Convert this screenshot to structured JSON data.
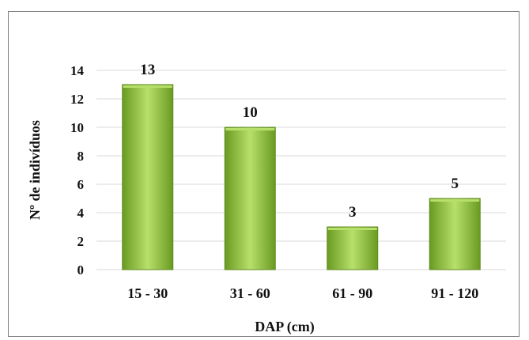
{
  "chart_data": {
    "type": "bar",
    "categories": [
      "15 - 30",
      "31 - 60",
      "61 - 90",
      "91 - 120"
    ],
    "values": [
      13,
      10,
      3,
      5
    ],
    "data_labels": [
      "13",
      "10",
      "3",
      "5"
    ],
    "title": "",
    "xlabel": "DAP (cm)",
    "ylabel": "Nº de indivíduos",
    "ylim": [
      0,
      14
    ],
    "yticks": [
      "0",
      "2",
      "4",
      "6",
      "8",
      "10",
      "12",
      "14"
    ],
    "grid": true,
    "legend": "none",
    "bar_color_top": "#b6e06a",
    "bar_color_mid": "#8cc63f",
    "bar_color_bottom": "#6a9a22",
    "bar_border_color": "#5f8a1e"
  }
}
